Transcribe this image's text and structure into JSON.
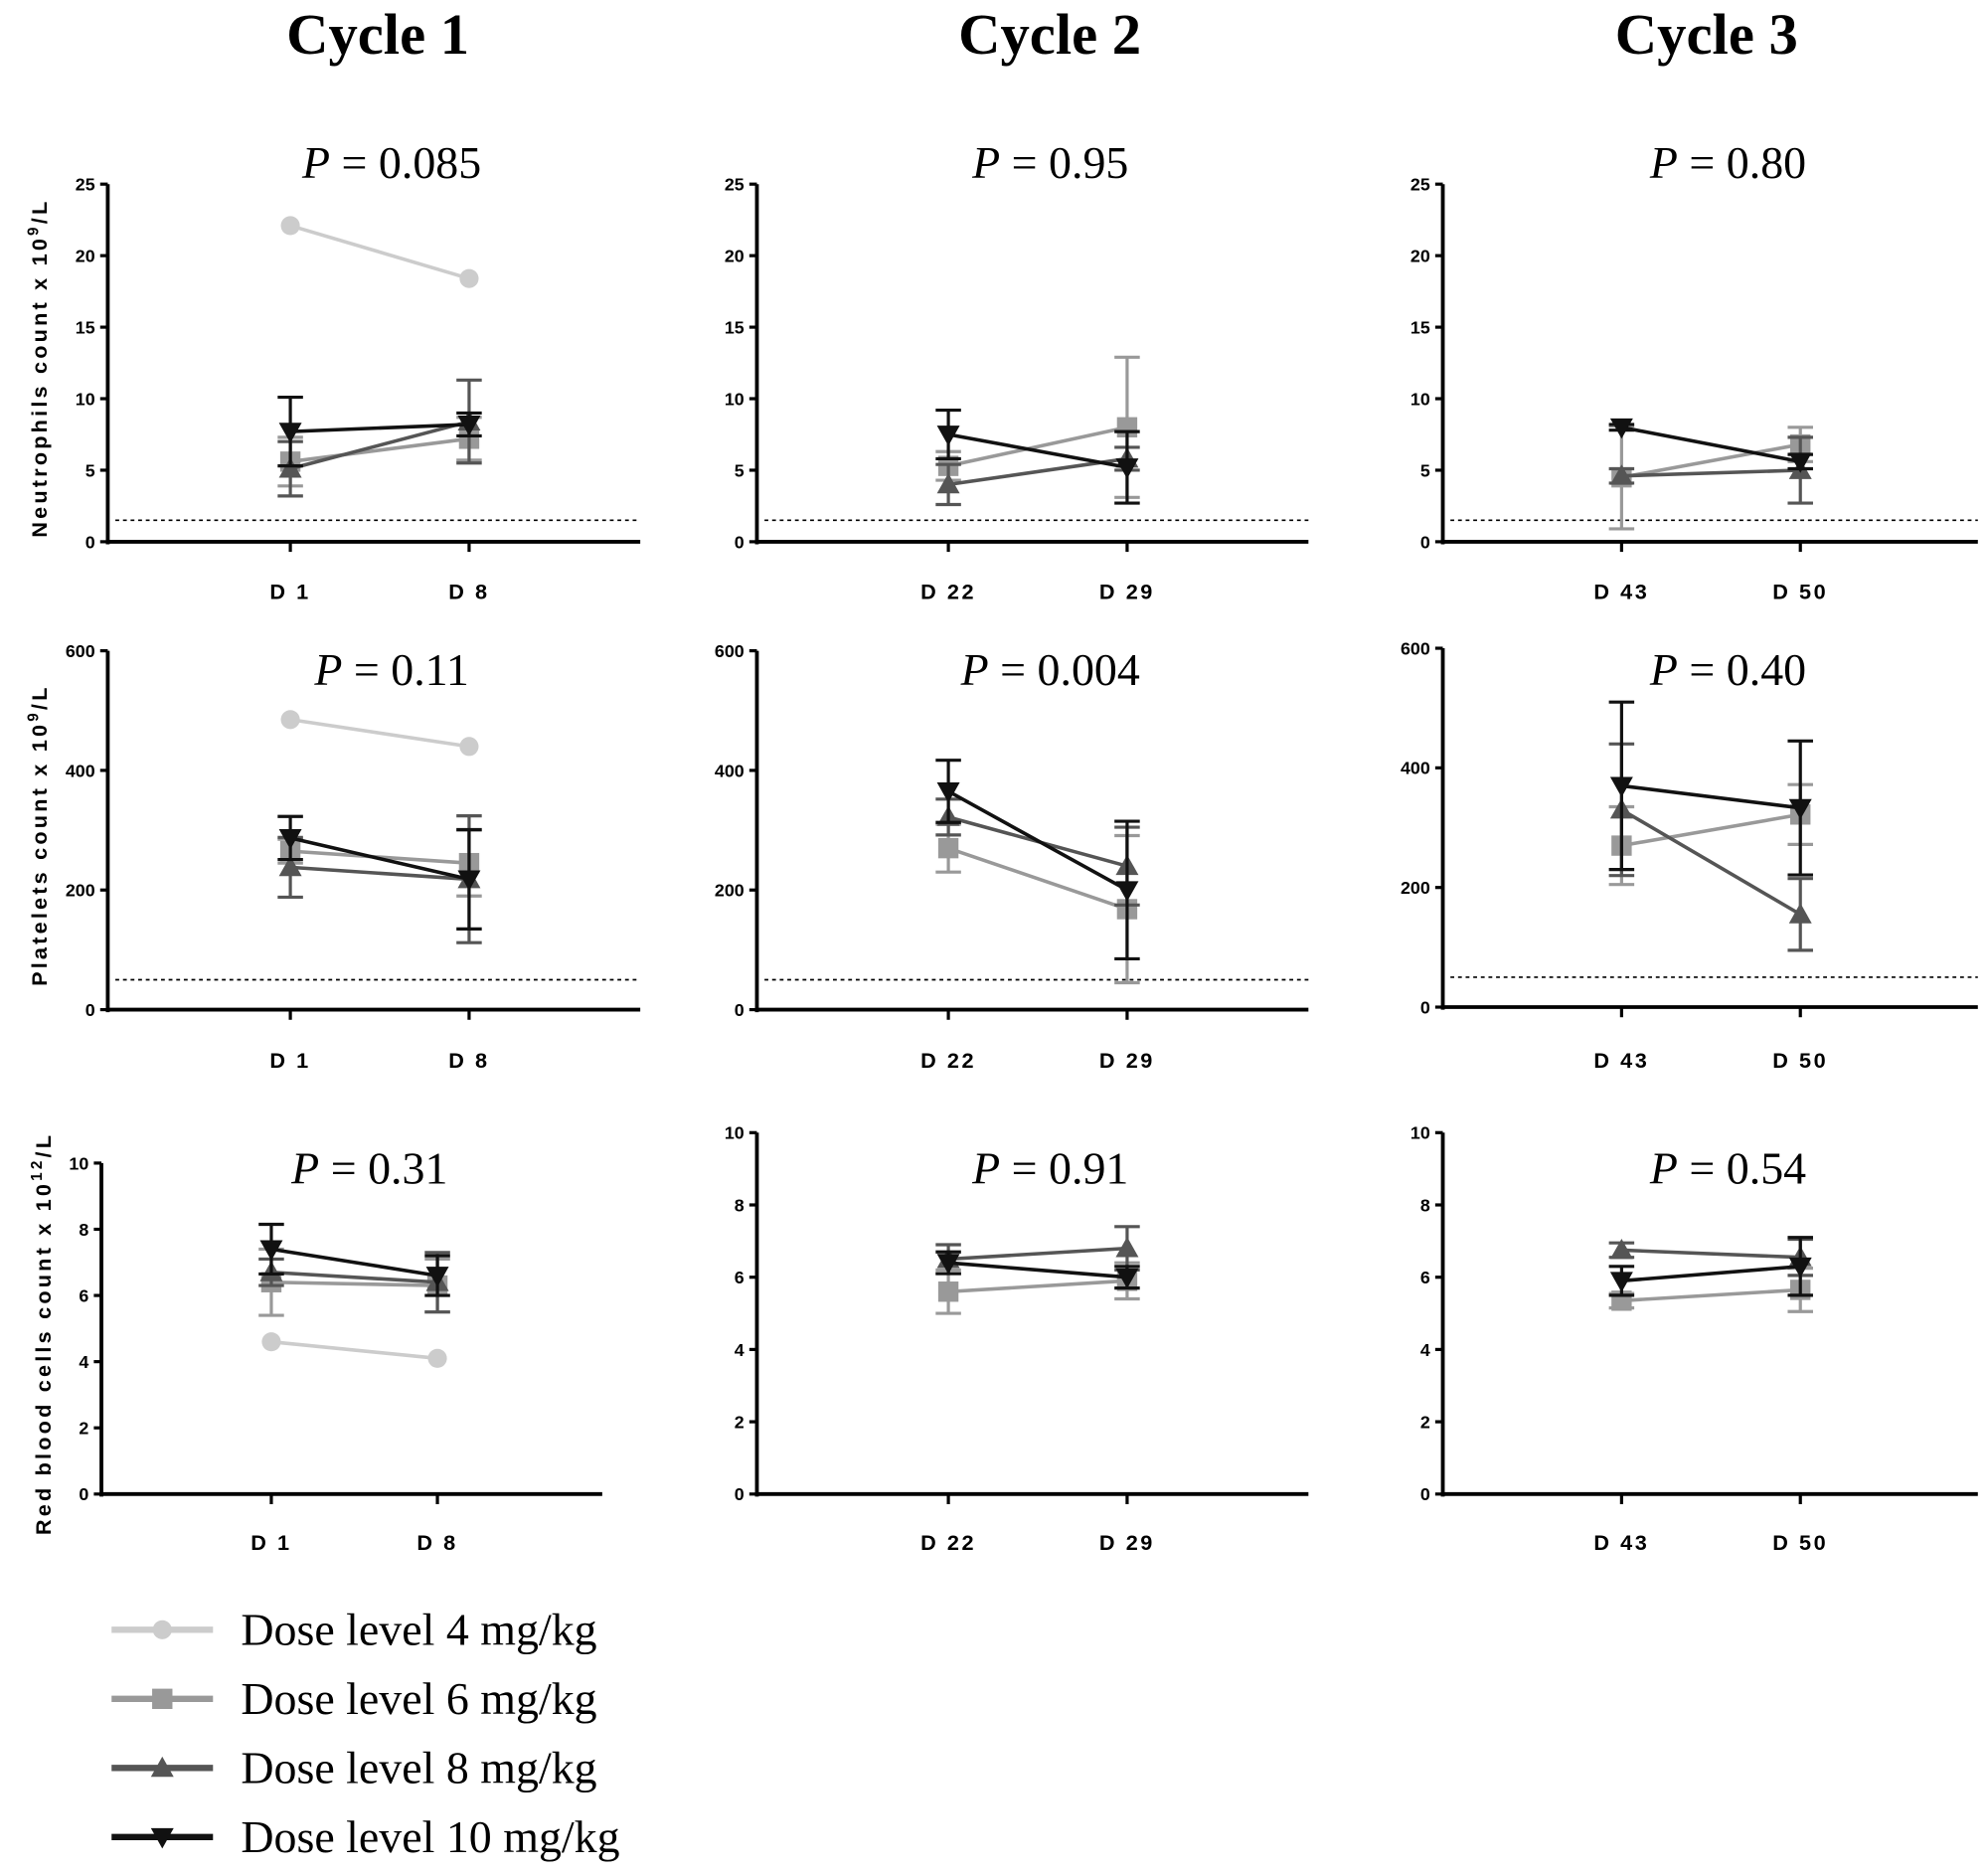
{
  "chart_data": {
    "type": "line",
    "column_titles": [
      "Cycle 1",
      "Cycle 2",
      "Cycle 3"
    ],
    "row_ylabels": [
      {
        "main": "Neutrophils count x 10",
        "sup": "9",
        "tail": "/L"
      },
      {
        "main": "Platelets count x 10",
        "sup": "9",
        "tail": "/L"
      },
      {
        "main": "Red blood cells count x 10",
        "sup": "12",
        "tail": "/L"
      }
    ],
    "legend": {
      "placement": "bottom-left",
      "entries": [
        {
          "name": "Dose level 4 mg/kg",
          "color": "#cccccc",
          "marker": "circle"
        },
        {
          "name": "Dose level 6 mg/kg",
          "color": "#999999",
          "marker": "square"
        },
        {
          "name": "Dose level 8 mg/kg",
          "color": "#555555",
          "marker": "triangle-up"
        },
        {
          "name": "Dose level 10 mg/kg",
          "color": "#111111",
          "marker": "triangle-down"
        }
      ]
    },
    "rows": [
      {
        "ylim": [
          0,
          25
        ],
        "yticks": [
          "0",
          "5",
          "10",
          "15",
          "20",
          "25"
        ],
        "threshold": 1.5,
        "panels": [
          {
            "p_label": "P",
            "p_value": "= 0.085",
            "x": [
              "D 1",
              "D 8"
            ],
            "series": [
              {
                "dose": 4,
                "values": [
                  22.1,
                  18.4
                ],
                "err": [
                  0,
                  0
                ]
              },
              {
                "dose": 6,
                "values": [
                  5.6,
                  7.2
                ],
                "err": [
                  1.7,
                  1.5
                ]
              },
              {
                "dose": 8,
                "values": [
                  5.1,
                  8.4
                ],
                "err": [
                  1.9,
                  2.9
                ]
              },
              {
                "dose": 10,
                "values": [
                  7.7,
                  8.2
                ],
                "err": [
                  2.4,
                  0.8
                ]
              }
            ]
          },
          {
            "p_label": "P",
            "p_value": "= 0.95",
            "x": [
              "D 22",
              "D 29"
            ],
            "series": [
              {
                "dose": 6,
                "values": [
                  5.3,
                  8.0
                ],
                "err": [
                  1.0,
                  4.9
                ]
              },
              {
                "dose": 8,
                "values": [
                  4.0,
                  5.8
                ],
                "err": [
                  1.4,
                  0.8
                ]
              },
              {
                "dose": 10,
                "values": [
                  7.5,
                  5.2
                ],
                "err": [
                  1.7,
                  2.5
                ]
              }
            ]
          },
          {
            "p_label": "P",
            "p_value": "= 0.80",
            "x": [
              "D 43",
              "D 50"
            ],
            "series": [
              {
                "dose": 6,
                "values": [
                  4.5,
                  6.8
                ],
                "err": [
                  3.6,
                  1.2
                ]
              },
              {
                "dose": 8,
                "values": [
                  4.6,
                  5.0
                ],
                "err": [
                  0.5,
                  2.3
                ]
              },
              {
                "dose": 10,
                "values": [
                  8.0,
                  5.6
                ],
                "err": [
                  0.2,
                  0.5
                ]
              }
            ]
          }
        ]
      },
      {
        "ylim": [
          0,
          600
        ],
        "yticks": [
          "0",
          "200",
          "400",
          "600"
        ],
        "threshold": 50,
        "panels": [
          {
            "p_label": "P",
            "p_value": "= 0.11",
            "x": [
              "D 1",
              "D 8"
            ],
            "series": [
              {
                "dose": 4,
                "values": [
                  485,
                  440
                ],
                "err": [
                  0,
                  0
                ]
              },
              {
                "dose": 6,
                "values": [
                  265,
                  245
                ],
                "err": [
                  20,
                  55
                ]
              },
              {
                "dose": 8,
                "values": [
                  238,
                  218
                ],
                "err": [
                  50,
                  106
                ]
              },
              {
                "dose": 10,
                "values": [
                  287,
                  218
                ],
                "err": [
                  36,
                  83
                ]
              }
            ]
          },
          {
            "p_label": "P",
            "p_value": "= 0.004",
            "x": [
              "D 22",
              "D 29"
            ],
            "series": [
              {
                "dose": 6,
                "values": [
                  270,
                  168
                ],
                "err": [
                  40,
                  123
                ]
              },
              {
                "dose": 8,
                "values": [
                  322,
                  240
                ],
                "err": [
                  30,
                  65
                ]
              },
              {
                "dose": 10,
                "values": [
                  365,
                  200
                ],
                "err": [
                  52,
                  115
                ]
              }
            ]
          },
          {
            "p_label": "P",
            "p_value": "= 0.40",
            "x": [
              "D 43",
              "D 50"
            ],
            "series": [
              {
                "dose": 6,
                "values": [
                  270,
                  322
                ],
                "err": [
                  65,
                  50
                ]
              },
              {
                "dose": 8,
                "values": [
                  330,
                  155
                ],
                "err": [
                  110,
                  60
                ]
              },
              {
                "dose": 10,
                "values": [
                  370,
                  333
                ],
                "err": [
                  140,
                  112
                ]
              }
            ]
          }
        ]
      },
      {
        "ylim": [
          0,
          10
        ],
        "yticks": [
          "0",
          "2",
          "4",
          "6",
          "8",
          "10"
        ],
        "threshold": null,
        "panels": [
          {
            "p_label": "P",
            "p_value": "= 0.31",
            "x": [
              "D 1",
              "D 8"
            ],
            "series": [
              {
                "dose": 4,
                "values": [
                  4.6,
                  4.1
                ],
                "err": [
                  0,
                  0
                ]
              },
              {
                "dose": 6,
                "values": [
                  6.4,
                  6.3
                ],
                "err": [
                  1.0,
                  0.8
                ]
              },
              {
                "dose": 8,
                "values": [
                  6.7,
                  6.4
                ],
                "err": [
                  0.4,
                  0.9
                ]
              },
              {
                "dose": 10,
                "values": [
                  7.4,
                  6.6
                ],
                "err": [
                  0.75,
                  0.6
                ]
              }
            ]
          },
          {
            "p_label": "P",
            "p_value": "= 0.91",
            "x": [
              "D 22",
              "D 29"
            ],
            "series": [
              {
                "dose": 6,
                "values": [
                  5.6,
                  5.9
                ],
                "err": [
                  0.6,
                  0.5
                ]
              },
              {
                "dose": 8,
                "values": [
                  6.5,
                  6.8
                ],
                "err": [
                  0.4,
                  0.6
                ]
              },
              {
                "dose": 10,
                "values": [
                  6.4,
                  6.0
                ],
                "err": [
                  0.3,
                  0.3
                ]
              }
            ]
          },
          {
            "p_label": "P",
            "p_value": "= 0.54",
            "x": [
              "D 43",
              "D 50"
            ],
            "series": [
              {
                "dose": 6,
                "values": [
                  5.35,
                  5.65
                ],
                "err": [
                  0.2,
                  0.6
                ]
              },
              {
                "dose": 8,
                "values": [
                  6.75,
                  6.55
                ],
                "err": [
                  0.2,
                  0.5
                ]
              },
              {
                "dose": 10,
                "values": [
                  5.9,
                  6.3
                ],
                "err": [
                  0.4,
                  0.8
                ]
              }
            ]
          }
        ]
      }
    ]
  }
}
